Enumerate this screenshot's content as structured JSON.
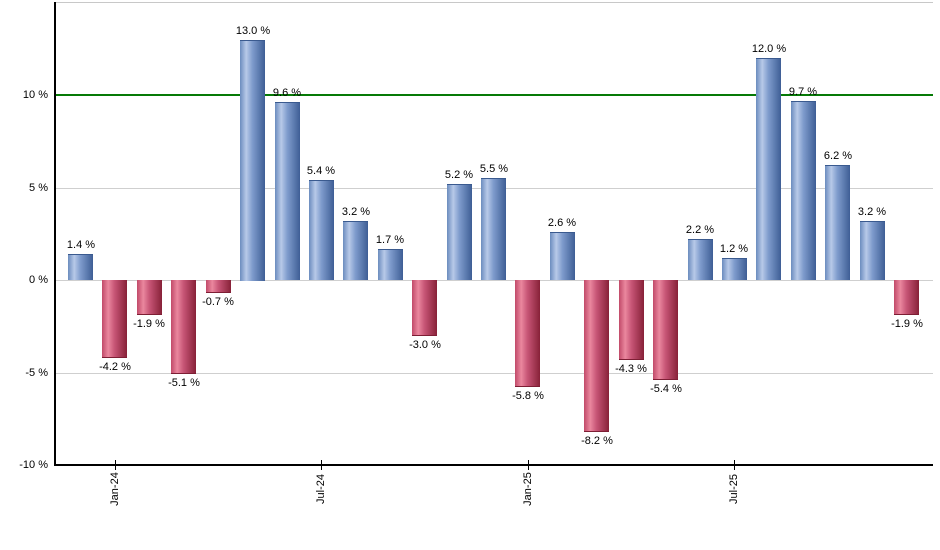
{
  "chart_data": {
    "type": "bar",
    "title": "",
    "xlabel": "",
    "ylabel": "",
    "values": [
      1.4,
      -4.2,
      -1.9,
      -5.1,
      -0.7,
      13.0,
      9.6,
      5.4,
      3.2,
      1.7,
      -3.0,
      5.2,
      5.5,
      -5.8,
      2.6,
      -8.2,
      -4.3,
      -5.4,
      2.2,
      1.2,
      12.0,
      9.7,
      6.2,
      3.2,
      -1.9
    ],
    "value_label_suffix": " %",
    "x_tick_labels": [
      {
        "index": 1,
        "label": "Jan-24"
      },
      {
        "index": 7,
        "label": "Jul-24"
      },
      {
        "index": 13,
        "label": "Jan-25"
      },
      {
        "index": 19,
        "label": "Jul-25"
      }
    ],
    "y_ticks": [
      {
        "value": 10,
        "label": "10 %"
      },
      {
        "value": 5,
        "label": "5 %"
      },
      {
        "value": 0,
        "label": "0 %"
      },
      {
        "value": -5,
        "label": "-5 %"
      },
      {
        "value": -10,
        "label": "-10 %"
      }
    ],
    "ylim": [
      -10,
      15
    ],
    "grid": true,
    "legend": "none",
    "threshold_line": {
      "value": 10,
      "color": "#067a06"
    },
    "colors": {
      "positive_edge": "#3e5e95",
      "positive_highlight": "#b7c9e8",
      "positive_mid": "#6b8cbe",
      "negative_edge": "#872138",
      "negative_highlight": "#ea879e",
      "negative_mid": "#c14a69",
      "gridline": "#cfcfcf",
      "axis": "#000000",
      "label_text": "#000000"
    }
  }
}
